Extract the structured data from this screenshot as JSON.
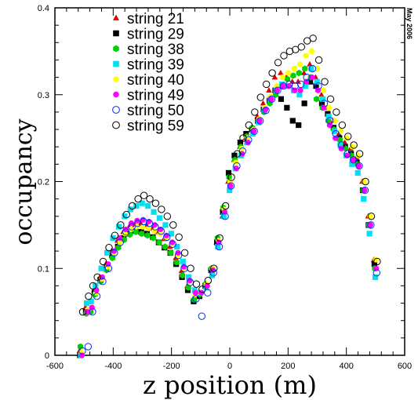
{
  "chart_data": {
    "type": "scatter",
    "xlabel": "z position (m)",
    "ylabel": "occupancy",
    "xlim": [
      -600,
      600
    ],
    "ylim": [
      0,
      0.4
    ],
    "x_ticks": [
      -600,
      -400,
      -200,
      0,
      200,
      400,
      600
    ],
    "y_ticks": [
      0,
      0.1,
      0.2,
      0.3,
      0.4
    ],
    "x_tick_labels": [
      "-600",
      "-400",
      "-200",
      "0",
      "200",
      "400",
      "600"
    ],
    "y_tick_labels": [
      "0",
      "0.1",
      "0.2",
      "0.3",
      "0.4"
    ],
    "grid": false,
    "legend_position": "top-left",
    "stamp": "May 2006",
    "x": [
      -510,
      -490,
      -475,
      -460,
      -440,
      -420,
      -400,
      -380,
      -360,
      -340,
      -320,
      -300,
      -280,
      -260,
      -240,
      -220,
      -200,
      -180,
      -160,
      -140,
      -120,
      -100,
      -80,
      -60,
      -40,
      -20,
      0,
      20,
      40,
      60,
      80,
      100,
      120,
      140,
      160,
      180,
      200,
      220,
      240,
      260,
      280,
      300,
      320,
      340,
      360,
      380,
      400,
      420,
      440,
      460,
      480,
      500
    ],
    "series": [
      {
        "name": "string 21",
        "marker": "triangle",
        "color": "#e00000",
        "filled": true,
        "values": [
          0.005,
          0.055,
          0.052,
          0.075,
          0.09,
          0.105,
          0.12,
          0.132,
          0.142,
          0.148,
          0.15,
          0.152,
          0.15,
          0.146,
          0.142,
          0.134,
          0.125,
          0.112,
          0.097,
          0.08,
          0.065,
          0.07,
          0.082,
          0.1,
          0.13,
          0.16,
          0.2,
          0.225,
          0.24,
          0.25,
          0.262,
          0.275,
          0.29,
          0.305,
          0.32,
          0.325,
          0.32,
          0.315,
          0.315,
          0.325,
          0.335,
          0.32,
          0.3,
          0.285,
          0.27,
          0.255,
          0.245,
          0.238,
          0.228,
          0.2,
          0.16,
          0.11
        ]
      },
      {
        "name": "string 29",
        "marker": "square",
        "color": "#000000",
        "filled": true,
        "values": [
          0.0,
          0.05,
          0.052,
          0.072,
          0.087,
          0.1,
          0.115,
          0.125,
          0.135,
          0.14,
          0.143,
          0.142,
          0.14,
          0.136,
          0.13,
          0.124,
          0.118,
          0.105,
          0.09,
          0.075,
          0.062,
          0.068,
          0.08,
          0.098,
          0.13,
          0.165,
          0.21,
          0.23,
          0.245,
          0.255,
          0.26,
          0.27,
          0.283,
          0.293,
          0.305,
          0.295,
          0.285,
          0.27,
          0.265,
          0.29,
          0.315,
          0.31,
          0.29,
          0.278,
          0.262,
          0.25,
          0.24,
          0.232,
          0.222,
          0.19,
          0.15,
          0.105
        ]
      },
      {
        "name": "string 38",
        "marker": "hexagon",
        "color": "#00d000",
        "filled": true,
        "values": [
          0.01,
          0.048,
          0.05,
          0.07,
          0.085,
          0.098,
          0.112,
          0.124,
          0.133,
          0.139,
          0.142,
          0.14,
          0.138,
          0.135,
          0.13,
          0.125,
          0.118,
          0.107,
          0.092,
          0.078,
          0.064,
          0.07,
          0.082,
          0.1,
          0.135,
          0.17,
          0.205,
          0.225,
          0.24,
          0.252,
          0.262,
          0.27,
          0.28,
          0.29,
          0.3,
          0.31,
          0.318,
          0.322,
          0.325,
          0.33,
          0.32,
          0.295,
          0.285,
          0.27,
          0.26,
          0.248,
          0.238,
          0.23,
          0.22,
          0.19,
          0.15,
          0.1
        ]
      },
      {
        "name": "string 39",
        "marker": "square",
        "color": "#00e0f0",
        "filled": true,
        "values": [
          0.0,
          0.06,
          0.062,
          0.08,
          0.1,
          0.118,
          0.135,
          0.148,
          0.16,
          0.168,
          0.172,
          0.175,
          0.172,
          0.165,
          0.158,
          0.15,
          0.14,
          0.125,
          0.108,
          0.09,
          0.075,
          0.072,
          0.078,
          0.092,
          0.125,
          0.16,
          0.19,
          0.215,
          0.23,
          0.245,
          0.255,
          0.268,
          0.283,
          0.295,
          0.305,
          0.312,
          0.31,
          0.305,
          0.3,
          0.31,
          0.33,
          0.315,
          0.295,
          0.275,
          0.258,
          0.242,
          0.23,
          0.22,
          0.21,
          0.18,
          0.14,
          0.09
        ]
      },
      {
        "name": "string 40",
        "marker": "circle",
        "color": "#ffff00",
        "filled": true,
        "values": [
          0.003,
          0.052,
          0.055,
          0.072,
          0.088,
          0.102,
          0.118,
          0.13,
          0.14,
          0.145,
          0.148,
          0.148,
          0.146,
          0.143,
          0.14,
          0.135,
          0.128,
          0.115,
          0.1,
          0.085,
          0.07,
          0.072,
          0.082,
          0.1,
          0.132,
          0.168,
          0.2,
          0.222,
          0.238,
          0.25,
          0.26,
          0.272,
          0.285,
          0.298,
          0.31,
          0.32,
          0.325,
          0.33,
          0.335,
          0.345,
          0.35,
          0.33,
          0.305,
          0.285,
          0.27,
          0.258,
          0.25,
          0.24,
          0.23,
          0.2,
          0.16,
          0.11
        ]
      },
      {
        "name": "string 49",
        "marker": "circle",
        "color": "#ff00ff",
        "filled": true,
        "values": [
          0.0,
          0.05,
          0.055,
          0.075,
          0.09,
          0.105,
          0.12,
          0.135,
          0.145,
          0.152,
          0.155,
          0.156,
          0.154,
          0.15,
          0.145,
          0.138,
          0.13,
          0.118,
          0.102,
          0.086,
          0.072,
          0.072,
          0.08,
          0.098,
          0.13,
          0.165,
          0.195,
          0.215,
          0.232,
          0.245,
          0.258,
          0.27,
          0.283,
          0.295,
          0.305,
          0.31,
          0.31,
          0.305,
          0.305,
          0.315,
          0.32,
          0.305,
          0.285,
          0.265,
          0.25,
          0.238,
          0.23,
          0.225,
          0.218,
          0.19,
          0.15,
          0.1
        ]
      },
      {
        "name": "string 50",
        "marker": "circle",
        "color": "#0030ff",
        "filled": false,
        "values": [
          0.005,
          0.01,
          0.05,
          0.068,
          0.085,
          0.1,
          0.118,
          0.13,
          0.142,
          0.148,
          0.152,
          0.154,
          0.152,
          0.148,
          0.143,
          0.136,
          0.128,
          0.115,
          0.1,
          0.084,
          0.065,
          0.045,
          0.072,
          0.095,
          0.125,
          0.16,
          0.195,
          0.218,
          0.235,
          0.248,
          0.258,
          0.27,
          0.282,
          0.295,
          0.305,
          0.31,
          0.312,
          0.31,
          0.312,
          0.32,
          0.33,
          0.31,
          0.29,
          0.27,
          0.255,
          0.242,
          0.232,
          0.225,
          0.218,
          0.19,
          0.15,
          0.095
        ]
      },
      {
        "name": "string 59",
        "marker": "circle",
        "color": "#000000",
        "filled": false,
        "values": [
          0.05,
          0.068,
          0.08,
          0.09,
          0.108,
          0.124,
          0.138,
          0.15,
          0.162,
          0.172,
          0.18,
          0.184,
          0.18,
          0.175,
          0.168,
          0.16,
          0.15,
          0.136,
          0.118,
          0.1,
          0.082,
          0.076,
          0.086,
          0.1,
          0.135,
          0.172,
          0.205,
          0.232,
          0.25,
          0.265,
          0.28,
          0.297,
          0.312,
          0.325,
          0.337,
          0.345,
          0.35,
          0.352,
          0.355,
          0.362,
          0.365,
          0.34,
          0.315,
          0.295,
          0.28,
          0.265,
          0.252,
          0.242,
          0.232,
          0.2,
          0.16,
          0.108
        ]
      }
    ]
  }
}
